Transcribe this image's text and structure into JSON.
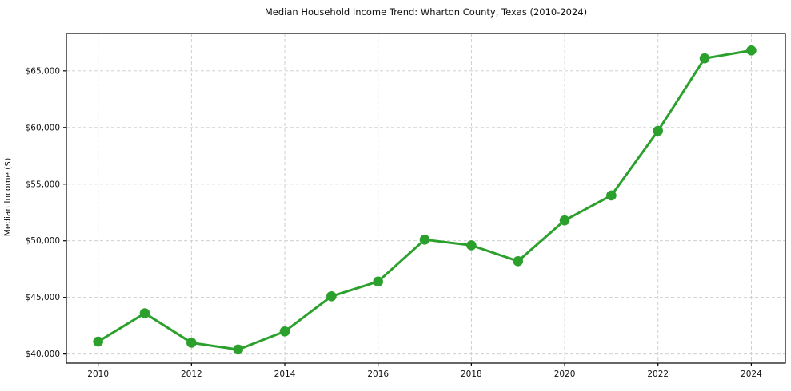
{
  "chart_data": {
    "type": "line",
    "title": "Median Household Income Trend: Wharton County, Texas (2010-2024)",
    "xlabel": "",
    "ylabel": "Median Income ($)",
    "series": [
      {
        "name": "Median Household Income",
        "x": [
          2010,
          2011,
          2012,
          2013,
          2014,
          2015,
          2016,
          2017,
          2018,
          2019,
          2020,
          2021,
          2022,
          2023,
          2024
        ],
        "values": [
          41100,
          43600,
          41000,
          40400,
          42000,
          45100,
          46400,
          50100,
          49600,
          48200,
          51800,
          54000,
          59700,
          66100,
          66800
        ]
      }
    ],
    "x_ticks": [
      2010,
      2012,
      2014,
      2016,
      2018,
      2020,
      2022,
      2024
    ],
    "x_tick_labels": [
      "2010",
      "2012",
      "2014",
      "2016",
      "2018",
      "2020",
      "2022",
      "2024"
    ],
    "y_ticks": [
      40000,
      45000,
      50000,
      55000,
      60000,
      65000
    ],
    "y_tick_labels": [
      "$40,000",
      "$45,000",
      "$50,000",
      "$55,000",
      "$60,000",
      "$65,000"
    ],
    "xlim": [
      2009.32,
      2024.73
    ],
    "ylim": [
      39200,
      68300
    ],
    "grid": "both-dashed",
    "legend": "none",
    "colors": {
      "line": "#2ca02c",
      "marker": "#2ca02c",
      "grid": "#c9c9c9",
      "axis": "#000000",
      "text": "#111111",
      "background": "#ffffff"
    }
  }
}
